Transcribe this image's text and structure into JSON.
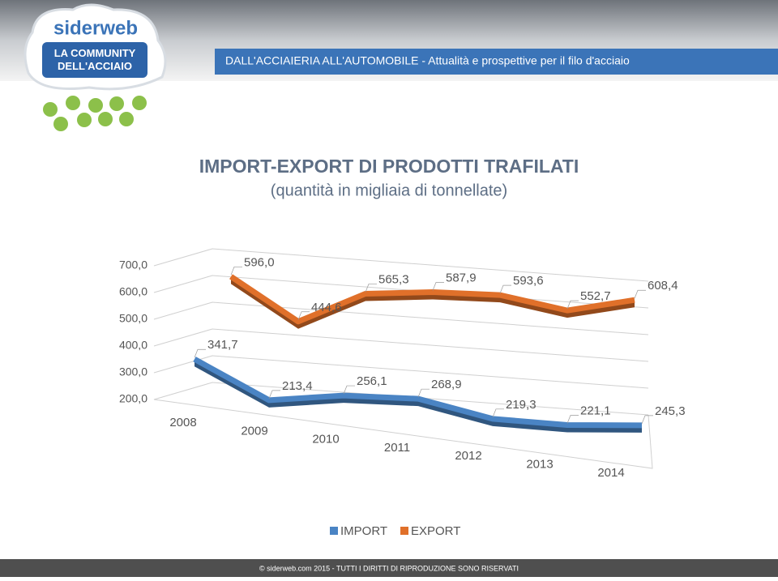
{
  "header": {
    "logo": "siderweb",
    "logo_tagline": "LA COMMUNITY DELL'ACCIAIO",
    "banner": "DALL'ACCIAIERIA ALL'AUTOMOBILE - Attualità e prospettive per il filo d'acciaio"
  },
  "chart_data": {
    "type": "line3d",
    "title": "IMPORT-EXPORT DI PRODOTTI TRAFILATI",
    "subtitle": "(quantità in migliaia di tonnellate)",
    "categories": [
      "2008",
      "2009",
      "2010",
      "2011",
      "2012",
      "2013",
      "2014"
    ],
    "series": [
      {
        "name": "IMPORT",
        "color": "#4a84c4",
        "values": [
          341.7,
          213.4,
          256.1,
          268.9,
          219.3,
          221.1,
          245.3
        ],
        "value_labels": [
          "341,7",
          "213,4",
          "256,1",
          "268,9",
          "219,3",
          "221,1",
          "245,3"
        ]
      },
      {
        "name": "EXPORT",
        "color": "#e0702a",
        "values": [
          596.0,
          444.6,
          565.3,
          587.9,
          593.6,
          552.7,
          608.4
        ],
        "value_labels": [
          "596,0",
          "444,6",
          "565,3",
          "587,9",
          "593,6",
          "552,7",
          "608,4"
        ]
      }
    ],
    "ylim": [
      200,
      700
    ],
    "yticks": [
      {
        "value": 200,
        "label": "200,0"
      },
      {
        "value": 300,
        "label": "300,0"
      },
      {
        "value": 400,
        "label": "400,0"
      },
      {
        "value": 500,
        "label": "500,0"
      },
      {
        "value": 600,
        "label": "600,0"
      },
      {
        "value": 700,
        "label": "700,0"
      }
    ],
    "grid": true,
    "legend": "bottom"
  },
  "footer": "© siderweb.com 2015 - TUTTI I DIRITTI DI RIPRODUZIONE SONO RISERVATI"
}
